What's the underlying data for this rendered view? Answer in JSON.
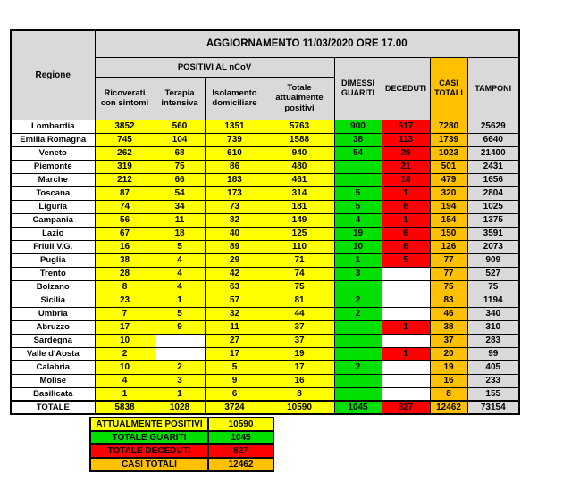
{
  "title": "AGGIORNAMENTO 11/03/2020 ORE 17.00",
  "colors": {
    "yellow": "#FFFF00",
    "green": "#00DF00",
    "red": "#FF0000",
    "orange": "#FFC000",
    "header_gray": "#D9D9D9",
    "cell_gray": "#D9D9D9",
    "empty_white": "#FFFFFF"
  },
  "table": {
    "header": {
      "region_label": "Regione",
      "positivi_group": "POSITIVI AL nCoV",
      "columns": [
        "Ricoverati con sintomi",
        "Terapia intensiva",
        "Isolamento domiciliare",
        "Totale attualmente positivi",
        "DIMESSI GUARITI",
        "DECEDUTI",
        "CASI TOTALI",
        "TAMPONI"
      ]
    },
    "rows": [
      {
        "regione": "Lombardia",
        "ricoverati": 3852,
        "terapia": 560,
        "isolamento": 1351,
        "totale_positivi": 5763,
        "dimessi": 900,
        "deceduti": 617,
        "casi": 7280,
        "tamponi": 25629
      },
      {
        "regione": "Emilia Romagna",
        "ricoverati": 745,
        "terapia": 104,
        "isolamento": 739,
        "totale_positivi": 1588,
        "dimessi": 38,
        "deceduti": 113,
        "casi": 1739,
        "tamponi": 6640
      },
      {
        "regione": "Veneto",
        "ricoverati": 262,
        "terapia": 68,
        "isolamento": 610,
        "totale_positivi": 940,
        "dimessi": 54,
        "deceduti": 29,
        "casi": 1023,
        "tamponi": 21400
      },
      {
        "regione": "Piemonte",
        "ricoverati": 319,
        "terapia": 75,
        "isolamento": 86,
        "totale_positivi": 480,
        "dimessi": "",
        "deceduti": 21,
        "casi": 501,
        "tamponi": 2431
      },
      {
        "regione": "Marche",
        "ricoverati": 212,
        "terapia": 66,
        "isolamento": 183,
        "totale_positivi": 461,
        "dimessi": "",
        "deceduti": 18,
        "casi": 479,
        "tamponi": 1656
      },
      {
        "regione": "Toscana",
        "ricoverati": 87,
        "terapia": 54,
        "isolamento": 173,
        "totale_positivi": 314,
        "dimessi": 5,
        "deceduti": 1,
        "casi": 320,
        "tamponi": 2804
      },
      {
        "regione": "Liguria",
        "ricoverati": 74,
        "terapia": 34,
        "isolamento": 73,
        "totale_positivi": 181,
        "dimessi": 5,
        "deceduti": 8,
        "casi": 194,
        "tamponi": 1025
      },
      {
        "regione": "Campania",
        "ricoverati": 56,
        "terapia": 11,
        "isolamento": 82,
        "totale_positivi": 149,
        "dimessi": 4,
        "deceduti": 1,
        "casi": 154,
        "tamponi": 1375
      },
      {
        "regione": "Lazio",
        "ricoverati": 67,
        "terapia": 18,
        "isolamento": 40,
        "totale_positivi": 125,
        "dimessi": 19,
        "deceduti": 6,
        "casi": 150,
        "tamponi": 3591
      },
      {
        "regione": "Friuli V.G.",
        "ricoverati": 16,
        "terapia": 5,
        "isolamento": 89,
        "totale_positivi": 110,
        "dimessi": 10,
        "deceduti": 6,
        "casi": 126,
        "tamponi": 2073
      },
      {
        "regione": "Puglia",
        "ricoverati": 38,
        "terapia": 4,
        "isolamento": 29,
        "totale_positivi": 71,
        "dimessi": 1,
        "deceduti": 5,
        "casi": 77,
        "tamponi": 909
      },
      {
        "regione": "Trento",
        "ricoverati": 28,
        "terapia": 4,
        "isolamento": 42,
        "totale_positivi": 74,
        "dimessi": 3,
        "deceduti": "",
        "casi": 77,
        "tamponi": 527
      },
      {
        "regione": "Bolzano",
        "ricoverati": 8,
        "terapia": 4,
        "isolamento": 63,
        "totale_positivi": 75,
        "dimessi": "",
        "deceduti": "",
        "casi": 75,
        "tamponi": 75
      },
      {
        "regione": "Sicilia",
        "ricoverati": 23,
        "terapia": 1,
        "isolamento": 57,
        "totale_positivi": 81,
        "dimessi": 2,
        "deceduti": "",
        "casi": 83,
        "tamponi": 1194
      },
      {
        "regione": "Umbria",
        "ricoverati": 7,
        "terapia": 5,
        "isolamento": 32,
        "totale_positivi": 44,
        "dimessi": 2,
        "deceduti": "",
        "casi": 46,
        "tamponi": 340
      },
      {
        "regione": "Abruzzo",
        "ricoverati": 17,
        "terapia": 9,
        "isolamento": 11,
        "totale_positivi": 37,
        "dimessi": "",
        "deceduti": 1,
        "casi": 38,
        "tamponi": 310
      },
      {
        "regione": "Sardegna",
        "ricoverati": 10,
        "terapia": "",
        "isolamento": 27,
        "totale_positivi": 37,
        "dimessi": "",
        "deceduti": "",
        "casi": 37,
        "tamponi": 283
      },
      {
        "regione": "Valle d'Aosta",
        "ricoverati": 2,
        "terapia": "",
        "isolamento": 17,
        "totale_positivi": 19,
        "dimessi": "",
        "deceduti": 1,
        "casi": 20,
        "tamponi": 99
      },
      {
        "regione": "Calabria",
        "ricoverati": 10,
        "terapia": 2,
        "isolamento": 5,
        "totale_positivi": 17,
        "dimessi": 2,
        "deceduti": "",
        "casi": 19,
        "tamponi": 405
      },
      {
        "regione": "Molise",
        "ricoverati": 4,
        "terapia": 3,
        "isolamento": 9,
        "totale_positivi": 16,
        "dimessi": "",
        "deceduti": "",
        "casi": 16,
        "tamponi": 233
      },
      {
        "regione": "Basilicata",
        "ricoverati": 1,
        "terapia": 1,
        "isolamento": 6,
        "totale_positivi": 8,
        "dimessi": "",
        "deceduti": "",
        "casi": 8,
        "tamponi": 155
      }
    ],
    "totale": {
      "regione": "TOTALE",
      "ricoverati": 5838,
      "terapia": 1028,
      "isolamento": 3724,
      "totale_positivi": 10590,
      "dimessi": 1045,
      "deceduti": 827,
      "casi": 12462,
      "tamponi": 73154
    }
  },
  "summary": {
    "rows": [
      {
        "label": "ATTUALMENTE POSITIVI",
        "value": 10590,
        "bg": "yellow"
      },
      {
        "label": "TOTALE GUARITI",
        "value": 1045,
        "bg": "green"
      },
      {
        "label": "TOTALE DECEDUTI",
        "value": 827,
        "bg": "red"
      },
      {
        "label": "CASI TOTALI",
        "value": 12462,
        "bg": "orange"
      }
    ]
  }
}
